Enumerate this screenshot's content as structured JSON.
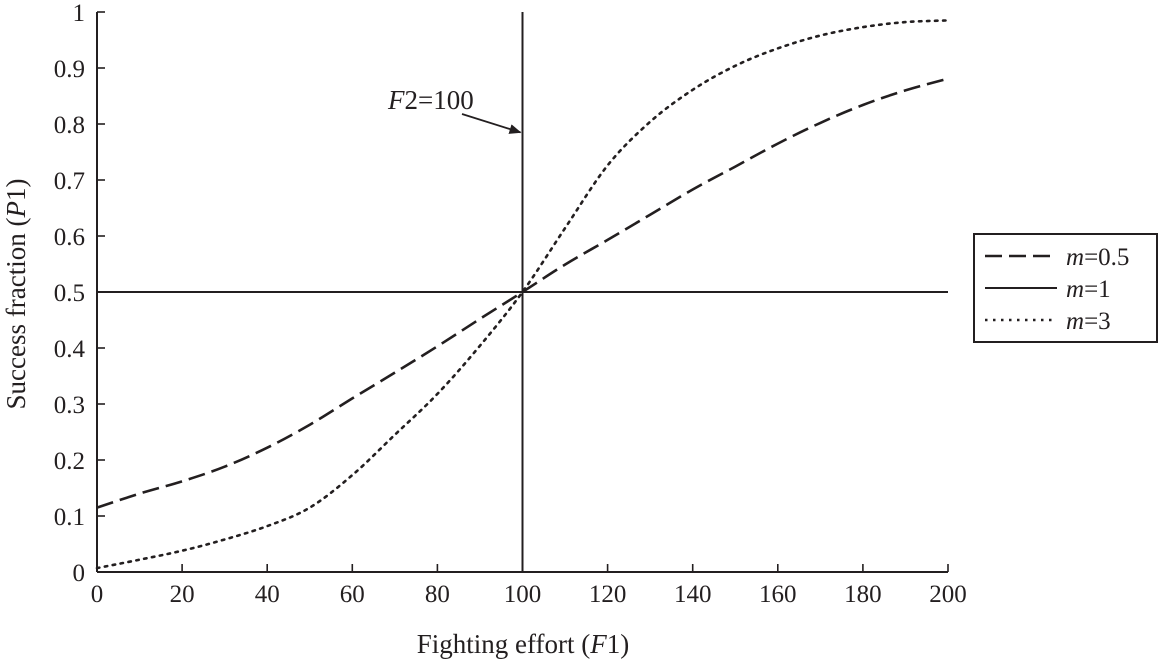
{
  "chart_data": {
    "type": "line",
    "xlabel": "Fighting effort (F1)",
    "xlabel_parts": [
      "Fighting effort (",
      "F",
      "1)"
    ],
    "ylabel": "Success fraction (P1)",
    "ylabel_parts": [
      "Success fraction (",
      "P",
      "1)"
    ],
    "xlim": [
      0,
      200
    ],
    "ylim": [
      0,
      1
    ],
    "x_ticks": [
      0,
      20,
      40,
      60,
      80,
      100,
      120,
      140,
      160,
      180,
      200
    ],
    "y_ticks": [
      0,
      0.1,
      0.2,
      0.3,
      0.4,
      0.5,
      0.6,
      0.7,
      0.8,
      0.9,
      1
    ],
    "y_tick_labels": [
      "0",
      "0.1",
      "0.2",
      "0.3",
      "0.4",
      "0.5",
      "0.6",
      "0.7",
      "0.8",
      "0.9",
      "1"
    ],
    "grid": false,
    "legend_position": "right",
    "x": [
      0,
      10,
      20,
      30,
      40,
      50,
      60,
      70,
      80,
      90,
      100,
      110,
      120,
      130,
      140,
      150,
      160,
      170,
      180,
      190,
      200
    ],
    "series": [
      {
        "name": "m=0.5",
        "name_parts": [
          "m",
          "=0.5"
        ],
        "style": "dashed",
        "values": [
          0.115,
          0.14,
          0.162,
          0.188,
          0.222,
          0.263,
          0.31,
          0.356,
          0.403,
          0.452,
          0.5,
          0.549,
          0.593,
          0.638,
          0.683,
          0.724,
          0.765,
          0.802,
          0.834,
          0.86,
          0.881
        ]
      },
      {
        "name": "m=1",
        "name_parts": [
          "m",
          "=1"
        ],
        "style": "solid",
        "values": null
      },
      {
        "name": "m=3",
        "name_parts": [
          "m",
          "=3"
        ],
        "style": "dotted",
        "values": [
          0.007,
          0.022,
          0.038,
          0.058,
          0.082,
          0.115,
          0.173,
          0.245,
          0.318,
          0.404,
          0.5,
          0.614,
          0.726,
          0.804,
          0.861,
          0.904,
          0.935,
          0.958,
          0.973,
          0.982,
          0.985
        ]
      }
    ],
    "reference_lines": {
      "vertical_x": 100,
      "horizontal_y": 0.5
    },
    "annotation": {
      "text": "F2=100",
      "text_parts": [
        "F",
        "2=100"
      ],
      "arrow_target": [
        100,
        0.785
      ]
    }
  },
  "colors": {
    "ink": "#231f20",
    "background": "#ffffff"
  }
}
